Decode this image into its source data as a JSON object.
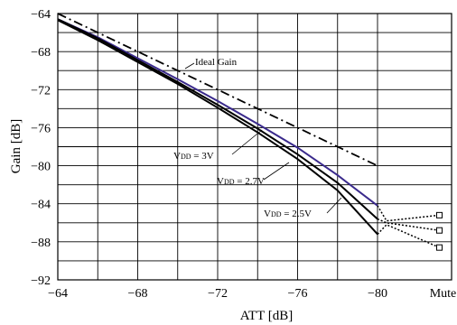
{
  "chart_data": {
    "type": "line",
    "xlabel": "ATT [dB]",
    "ylabel": "Gain [dB]",
    "xlim": [
      -64,
      -84
    ],
    "ylim": [
      -92,
      -64
    ],
    "x_ticks": [
      -64,
      -68,
      -72,
      -76,
      -80
    ],
    "x_extra_tick_label": "Mute",
    "y_ticks": [
      -64,
      -68,
      -72,
      -76,
      -80,
      -84,
      -88,
      -92
    ],
    "grid": true,
    "series": [
      {
        "name": "Ideal Gain",
        "style": "dash-dot",
        "color": "#000000",
        "x": [
          -64,
          -80
        ],
        "y": [
          -64,
          -80
        ]
      },
      {
        "name": "VDD = 3V",
        "color": "#3a2a8c",
        "x": [
          -64,
          -66,
          -68,
          -70,
          -72,
          -74,
          -76,
          -78,
          -80
        ],
        "y": [
          -64.6,
          -66.5,
          -68.7,
          -70.9,
          -73.2,
          -75.6,
          -78.1,
          -81.0,
          -84.2
        ],
        "mute": {
          "x": "Mute",
          "start": -85.8,
          "end": -85.2
        }
      },
      {
        "name": "VDD = 2.7V",
        "color": "#000000",
        "x": [
          -64,
          -66,
          -68,
          -70,
          -72,
          -74,
          -76,
          -78,
          -80
        ],
        "y": [
          -64.6,
          -66.6,
          -68.9,
          -71.2,
          -73.6,
          -76.1,
          -78.8,
          -81.8,
          -85.6
        ],
        "mute": {
          "x": "Mute",
          "start": -86.0,
          "end": -86.8
        }
      },
      {
        "name": "VDD = 2.5V",
        "color": "#000000",
        "x": [
          -64,
          -66,
          -68,
          -70,
          -72,
          -74,
          -76,
          -78,
          -80
        ],
        "y": [
          -64.7,
          -66.8,
          -69.1,
          -71.4,
          -73.9,
          -76.5,
          -79.3,
          -82.6,
          -87.2
        ],
        "mute": {
          "x": "Mute",
          "start": -86.2,
          "end": -88.6
        }
      }
    ],
    "annotations": {
      "ideal": "Ideal Gain",
      "v3_prefix": "V",
      "v3_sub": "DD",
      "v3_value": " = 3V",
      "v27_prefix": "V",
      "v27_sub": "DD",
      "v27_value": " = 2.7V",
      "v25_prefix": "V",
      "v25_sub": "DD",
      "v25_value": " = 2.5V"
    }
  }
}
